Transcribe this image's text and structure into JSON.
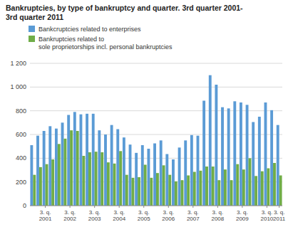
{
  "chart_data": {
    "type": "bar",
    "title": "Bankruptcies, by type of bankruptcy and quarter. 3rd quarter 2001-\n3rd quarter 2011",
    "categories": [
      null,
      null,
      "3. q.\n2001",
      null,
      null,
      null,
      "3. q.\n2002",
      null,
      null,
      null,
      "3. q.\n2003",
      null,
      null,
      null,
      "3. q.\n2004",
      null,
      null,
      null,
      "3. q.\n2005",
      null,
      null,
      null,
      "3. q.\n2006",
      null,
      null,
      null,
      "3. q.\n2007",
      null,
      null,
      null,
      "3. q.\n2008",
      null,
      null,
      null,
      "3. q.\n2009",
      null,
      null,
      null,
      "3. q.\n2010",
      null,
      "3. q.\n2011"
    ],
    "series": [
      {
        "name": "Bankcruptcies related to enterprises",
        "color": "#5b9bd5",
        "values": [
          510,
          590,
          630,
          670,
          650,
          700,
          765,
          790,
          770,
          775,
          775,
          635,
          600,
          680,
          645,
          575,
          515,
          445,
          510,
          480,
          525,
          550,
          435,
          390,
          490,
          550,
          595,
          590,
          885,
          1100,
          1020,
          830,
          820,
          880,
          870,
          850,
          705,
          750,
          870,
          805,
          680
        ]
      },
      {
        "name": "Bankruptcies related to\nsole proprietorships incl. personal bankruptcies",
        "color": "#70ad47",
        "values": [
          260,
          325,
          350,
          390,
          520,
          565,
          635,
          630,
          420,
          450,
          455,
          450,
          365,
          355,
          460,
          260,
          235,
          240,
          345,
          235,
          275,
          340,
          260,
          205,
          215,
          255,
          285,
          295,
          330,
          330,
          215,
          305,
          215,
          350,
          305,
          400,
          250,
          290,
          315,
          360,
          255
        ]
      }
    ],
    "ylim": [
      0,
      1200
    ],
    "yticks": [
      0,
      200,
      400,
      600,
      800,
      {
        "value": 1000,
        "label": "1 000"
      },
      {
        "value": 1200,
        "label": "1 200"
      }
    ],
    "grid": true,
    "legend": "upper left"
  }
}
